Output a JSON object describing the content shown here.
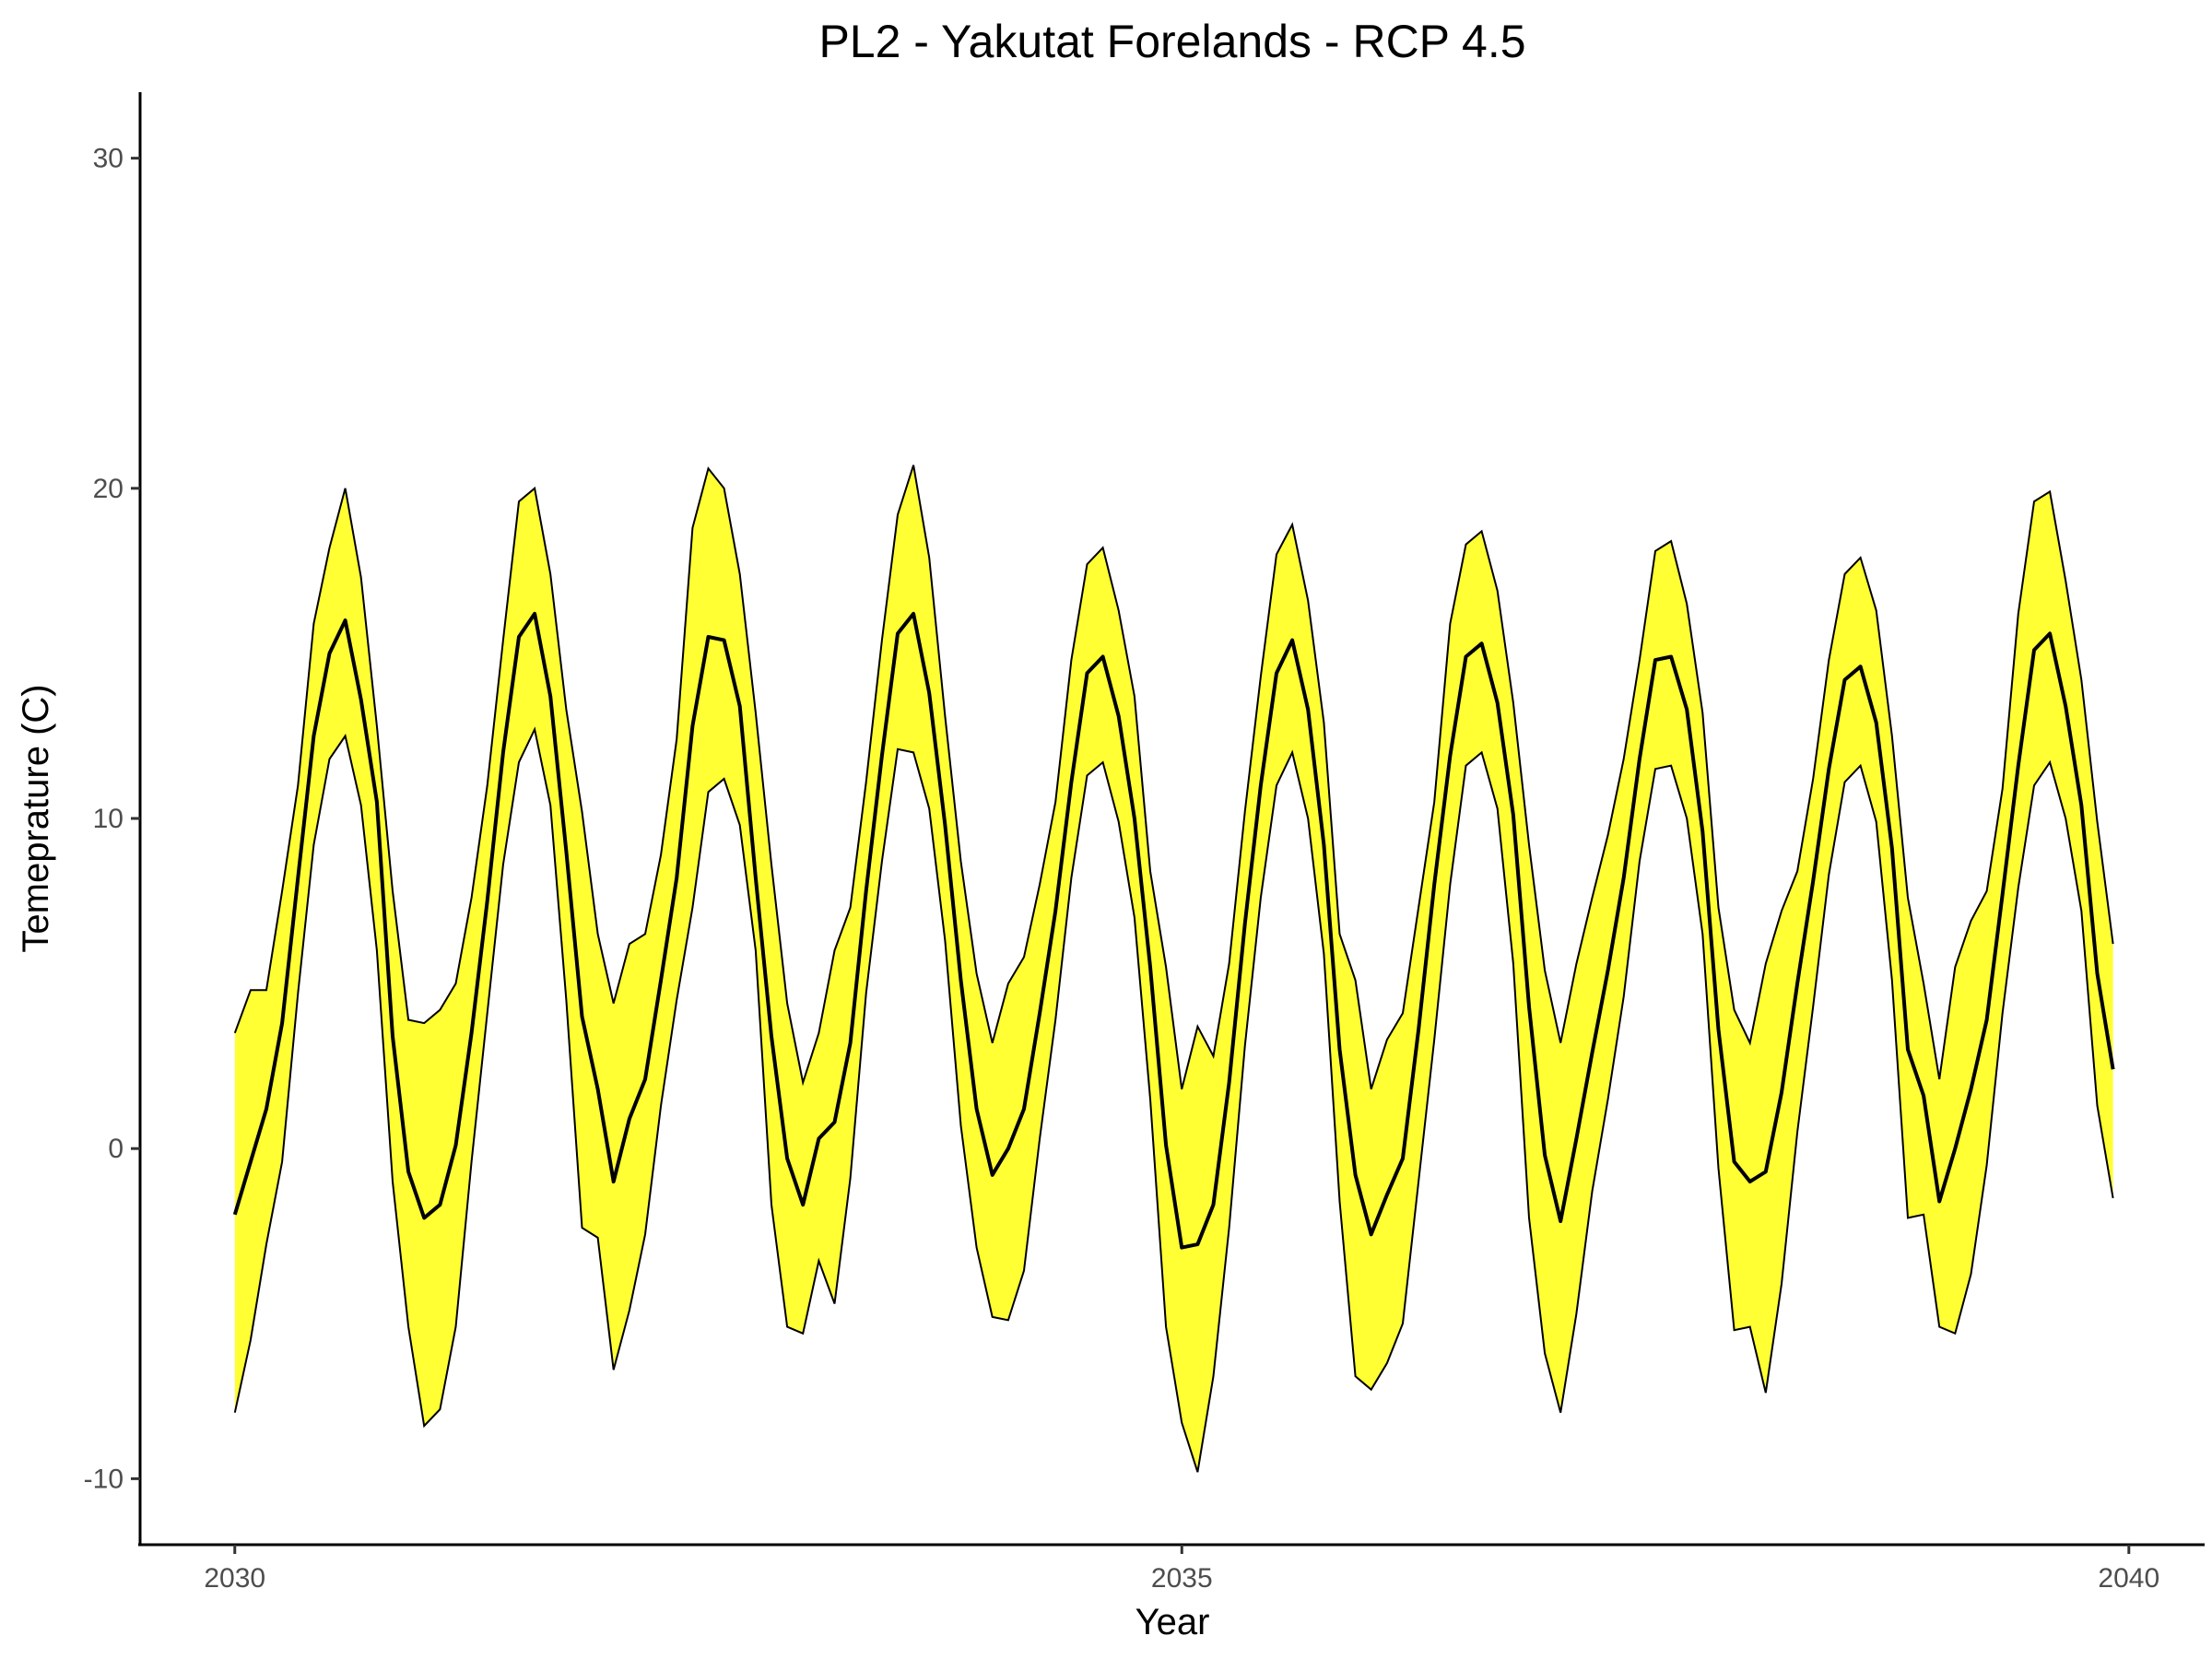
{
  "chart_data": {
    "type": "area",
    "title": "PL2 - Yakutat Forelands - RCP 4.5",
    "xlabel": "Year",
    "ylabel": "Temeprature (C)",
    "xlim": [
      2029.5,
      2040.4
    ],
    "ylim": [
      -12,
      32
    ],
    "xticks": [
      2030,
      2035,
      2040
    ],
    "yticks": [
      -10,
      0,
      10,
      20,
      30
    ],
    "grid": false,
    "legend": "none",
    "x_start": 2030.0,
    "x_step": 0.08333,
    "colors": {
      "band": "#ffff33",
      "line": "#000000"
    },
    "series": [
      {
        "role": "mean",
        "values": [
          -2.0,
          -0.4,
          1.2,
          3.8,
          8.2,
          12.5,
          15.0,
          16.0,
          13.6,
          10.5,
          3.4,
          -0.7,
          -2.1,
          -1.7,
          0.1,
          3.5,
          7.5,
          12.0,
          15.5,
          16.2,
          13.7,
          9.0,
          4.0,
          1.8,
          -1.0,
          0.9,
          2.1,
          5.1,
          8.2,
          12.8,
          15.5,
          15.4,
          13.4,
          8.2,
          3.4,
          -0.3,
          -1.7,
          0.3,
          0.8,
          3.2,
          7.8,
          11.9,
          15.6,
          16.2,
          13.8,
          9.8,
          5.1,
          1.2,
          -0.8,
          0.0,
          1.2,
          4.1,
          7.2,
          11.1,
          14.4,
          14.9,
          13.1,
          10.0,
          5.5,
          0.1,
          -3.0,
          -2.9,
          -1.7,
          2.0,
          6.8,
          11.0,
          14.4,
          15.4,
          13.3,
          9.2,
          3.0,
          -0.8,
          -2.6,
          -1.4,
          -0.3,
          3.6,
          8.0,
          11.9,
          14.9,
          15.3,
          13.5,
          10.1,
          4.3,
          -0.2,
          -2.2,
          0.3,
          2.9,
          5.4,
          8.2,
          11.8,
          14.8,
          14.9,
          13.3,
          9.6,
          3.6,
          -0.4,
          -1.0,
          -0.7,
          1.7,
          5.0,
          8.1,
          11.5,
          14.2,
          14.6,
          12.9,
          9.1,
          3.0,
          1.6,
          -1.6,
          0.0,
          1.8,
          3.9,
          7.7,
          11.6,
          15.1,
          15.6,
          13.4,
          10.4,
          5.3,
          2.4
        ]
      },
      {
        "role": "upper",
        "values": [
          3.5,
          4.8,
          4.8,
          7.8,
          11.0,
          15.9,
          18.2,
          20.0,
          17.3,
          12.8,
          7.8,
          3.9,
          3.8,
          4.2,
          5.0,
          7.6,
          11.0,
          15.4,
          19.6,
          20.0,
          17.4,
          13.3,
          10.2,
          6.5,
          4.4,
          6.2,
          6.5,
          8.9,
          12.4,
          18.8,
          20.6,
          20.0,
          17.4,
          13.2,
          8.6,
          4.4,
          2.0,
          3.5,
          6.0,
          7.3,
          11.1,
          15.4,
          19.2,
          20.7,
          17.9,
          13.1,
          8.7,
          5.3,
          3.2,
          5.0,
          5.8,
          8.0,
          10.5,
          14.8,
          17.7,
          18.2,
          16.3,
          13.7,
          8.4,
          5.5,
          1.8,
          3.7,
          2.8,
          5.6,
          10.2,
          14.3,
          18.0,
          18.9,
          16.6,
          12.9,
          6.5,
          5.1,
          1.8,
          3.3,
          4.1,
          7.3,
          10.5,
          15.9,
          18.3,
          18.7,
          16.9,
          13.5,
          9.2,
          5.4,
          3.2,
          5.6,
          7.6,
          9.5,
          11.8,
          14.8,
          18.1,
          18.4,
          16.5,
          13.2,
          7.3,
          4.2,
          3.2,
          5.6,
          7.2,
          8.4,
          11.2,
          14.8,
          17.4,
          17.9,
          16.3,
          12.5,
          7.6,
          5.0,
          2.1,
          5.5,
          6.9,
          7.8,
          10.9,
          16.2,
          19.6,
          19.9,
          17.2,
          14.2,
          9.9,
          6.2
        ]
      },
      {
        "role": "lower",
        "values": [
          -8.0,
          -5.8,
          -2.9,
          -0.4,
          4.7,
          9.2,
          11.8,
          12.5,
          10.4,
          6.0,
          -1.0,
          -5.4,
          -8.4,
          -7.9,
          -5.4,
          -0.4,
          4.1,
          8.6,
          11.7,
          12.7,
          10.4,
          4.5,
          -2.4,
          -2.7,
          -6.7,
          -4.9,
          -2.6,
          1.3,
          4.5,
          7.3,
          10.8,
          11.2,
          9.8,
          6.0,
          -1.7,
          -5.4,
          -5.6,
          -3.4,
          -4.7,
          -0.9,
          4.7,
          8.7,
          12.1,
          12.0,
          10.3,
          6.3,
          0.7,
          -3.0,
          -5.1,
          -5.2,
          -3.7,
          0.3,
          3.9,
          8.2,
          11.3,
          11.7,
          9.9,
          7.0,
          1.5,
          -5.4,
          -8.3,
          -9.8,
          -6.9,
          -2.4,
          3.1,
          7.6,
          11.0,
          12.0,
          10.0,
          5.9,
          -1.6,
          -6.9,
          -7.3,
          -6.5,
          -5.3,
          -1.0,
          3.3,
          8.0,
          11.6,
          12.0,
          10.3,
          5.6,
          -2.1,
          -6.2,
          -8.0,
          -5.0,
          -1.3,
          1.5,
          4.6,
          8.7,
          11.5,
          11.6,
          10.0,
          6.5,
          -0.6,
          -5.5,
          -5.4,
          -7.4,
          -4.1,
          0.5,
          4.3,
          8.3,
          11.1,
          11.6,
          9.9,
          5.1,
          -2.1,
          -2.0,
          -5.4,
          -5.6,
          -3.8,
          -0.5,
          4.1,
          7.9,
          11.0,
          11.7,
          10.0,
          7.2,
          1.3,
          -1.5
        ]
      }
    ]
  }
}
